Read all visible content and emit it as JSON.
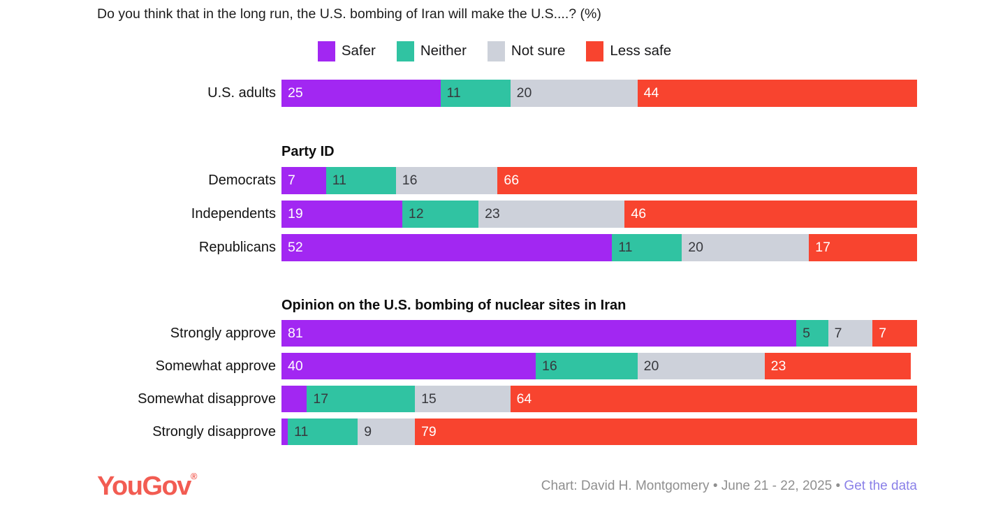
{
  "chart_data": {
    "type": "bar",
    "orientation": "horizontal-stacked",
    "title": "Do you think that in the long run, the U.S. bombing of Iran will make the U.S....? (%)",
    "unit": "%",
    "x_range": [
      0,
      100
    ],
    "grid": false,
    "legend_position": "top-center",
    "min_label_value": 5,
    "legend": [
      {
        "label": "Safer",
        "color": "#a227f2",
        "text_color": "#ffffff"
      },
      {
        "label": "Neither",
        "color": "#30c3a2",
        "text_color": "#37383d"
      },
      {
        "label": "Not sure",
        "color": "#cdd1da",
        "text_color": "#37383d"
      },
      {
        "label": "Less safe",
        "color": "#f8442f",
        "text_color": "#ffffff"
      }
    ],
    "groups": [
      {
        "header": "",
        "rows": [
          {
            "label": "U.S. adults",
            "values": [
              25,
              11,
              20,
              44
            ]
          }
        ]
      },
      {
        "header": "Party ID",
        "rows": [
          {
            "label": "Democrats",
            "values": [
              7,
              11,
              16,
              66
            ]
          },
          {
            "label": "Independents",
            "values": [
              19,
              12,
              23,
              46
            ]
          },
          {
            "label": "Republicans",
            "values": [
              52,
              11,
              20,
              17
            ]
          }
        ]
      },
      {
        "header": "Opinion on the U.S. bombing of nuclear sites in Iran",
        "rows": [
          {
            "label": "Strongly approve",
            "values": [
              81,
              5,
              7,
              7
            ]
          },
          {
            "label": "Somewhat approve",
            "values": [
              40,
              16,
              20,
              23
            ]
          },
          {
            "label": "Somewhat disapprove",
            "values": [
              4,
              17,
              15,
              64
            ]
          },
          {
            "label": "Strongly disapprove",
            "values": [
              1,
              11,
              9,
              79
            ]
          }
        ]
      }
    ]
  },
  "footer": {
    "logo_text": "YouGov",
    "logo_reg": "®",
    "logo_color": "#f25c52",
    "credit_text": "Chart: David H. Montgomery • June 21 - 22, 2025 • ",
    "link_label": "Get the data",
    "link_color": "#8a80e8"
  }
}
